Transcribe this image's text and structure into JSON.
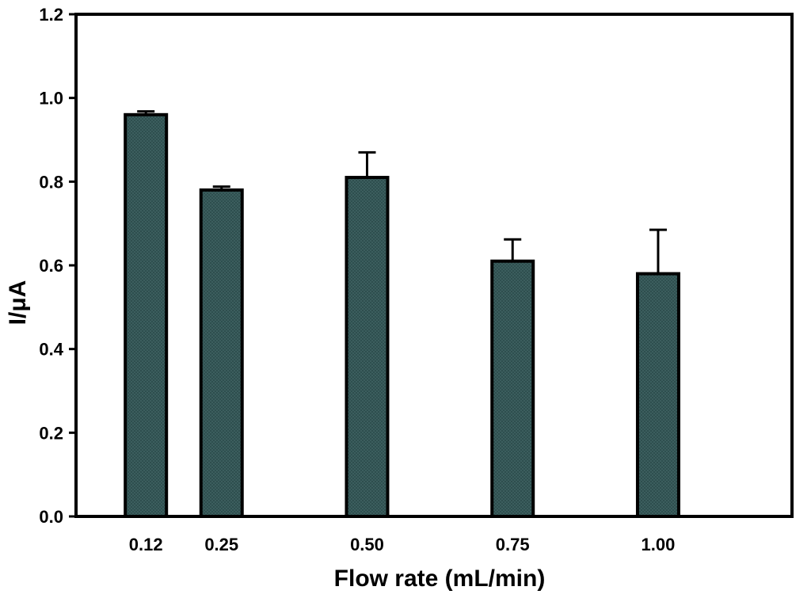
{
  "chart_data": {
    "type": "bar",
    "title": "",
    "xlabel": "Flow rate (mL/min)",
    "ylabel": "I/μA",
    "x": [
      0.12,
      0.25,
      0.5,
      0.75,
      1.0
    ],
    "x_tick_labels": [
      "0.12",
      "0.25",
      "0.50",
      "0.75",
      "1.00"
    ],
    "values": [
      0.96,
      0.78,
      0.81,
      0.61,
      0.58
    ],
    "error_plus": [
      0.008,
      0.008,
      0.06,
      0.052,
      0.105
    ],
    "y_ticks": [
      0.0,
      0.2,
      0.4,
      0.6,
      0.8,
      1.0,
      1.2
    ],
    "y_tick_labels": [
      "0.0",
      "0.2",
      "0.4",
      "0.6",
      "0.8",
      "1.0",
      "1.2"
    ],
    "ylim": [
      0,
      1.2
    ],
    "xlim": [
      0,
      1.23
    ],
    "grid": false,
    "legend": "none",
    "bar_color": "#284848",
    "bar_edge_color": "#000000"
  }
}
